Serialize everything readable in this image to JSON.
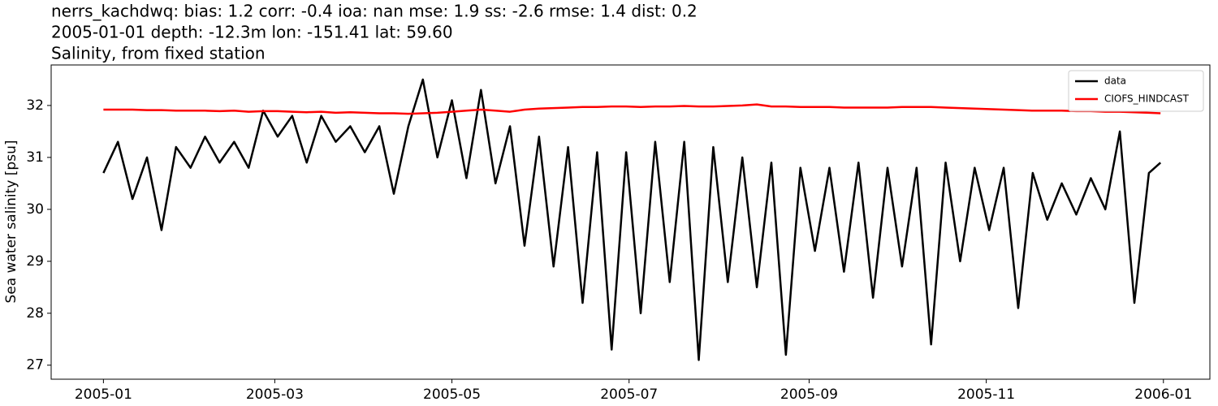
{
  "chart_data": {
    "type": "line",
    "title": "nerrs_kachdwq: bias: 1.2  corr: -0.4  ioa: nan  mse: 1.9  ss: -2.6  rmse: 1.4  dist: 0.2",
    "subtitle": "2005-01-01 depth: -12.3m lon: -151.41 lat: 59.60",
    "subtitle2": "Salinity, from fixed station",
    "y_label": "Sea water salinity [psu]",
    "x": [
      "2005-01-01",
      "2005-01-06",
      "2005-01-11",
      "2005-01-16",
      "2005-01-21",
      "2005-01-26",
      "2005-01-31",
      "2005-02-05",
      "2005-02-10",
      "2005-02-15",
      "2005-02-20",
      "2005-02-25",
      "2005-03-02",
      "2005-03-07",
      "2005-03-12",
      "2005-03-17",
      "2005-03-22",
      "2005-03-27",
      "2005-04-01",
      "2005-04-06",
      "2005-04-11",
      "2005-04-16",
      "2005-04-21",
      "2005-04-26",
      "2005-05-01",
      "2005-05-06",
      "2005-05-11",
      "2005-05-16",
      "2005-05-21",
      "2005-05-26",
      "2005-05-31",
      "2005-06-05",
      "2005-06-10",
      "2005-06-15",
      "2005-06-20",
      "2005-06-25",
      "2005-06-30",
      "2005-07-05",
      "2005-07-10",
      "2005-07-15",
      "2005-07-20",
      "2005-07-25",
      "2005-07-30",
      "2005-08-04",
      "2005-08-09",
      "2005-08-14",
      "2005-08-19",
      "2005-08-24",
      "2005-08-29",
      "2005-09-03",
      "2005-09-08",
      "2005-09-13",
      "2005-09-18",
      "2005-09-23",
      "2005-09-28",
      "2005-10-03",
      "2005-10-08",
      "2005-10-13",
      "2005-10-18",
      "2005-10-23",
      "2005-10-28",
      "2005-11-02",
      "2005-11-07",
      "2005-11-12",
      "2005-11-17",
      "2005-11-22",
      "2005-11-27",
      "2005-12-02",
      "2005-12-07",
      "2005-12-12",
      "2005-12-17",
      "2005-12-22",
      "2005-12-27",
      "2005-12-31"
    ],
    "series": [
      {
        "name": "data",
        "color": "#000000",
        "values": [
          30.7,
          31.3,
          30.2,
          31.0,
          29.6,
          31.2,
          30.8,
          31.4,
          30.9,
          31.3,
          30.8,
          31.9,
          31.4,
          31.8,
          30.9,
          31.8,
          31.3,
          31.6,
          31.1,
          31.6,
          30.3,
          31.6,
          32.5,
          31.0,
          32.1,
          30.6,
          32.3,
          30.5,
          31.6,
          29.3,
          31.4,
          28.9,
          31.2,
          28.2,
          31.1,
          27.3,
          31.1,
          28.0,
          31.3,
          28.6,
          31.3,
          27.1,
          31.2,
          28.6,
          31.0,
          28.5,
          30.9,
          27.2,
          30.8,
          29.2,
          30.8,
          28.8,
          30.9,
          28.3,
          30.8,
          28.9,
          30.8,
          27.4,
          30.9,
          29.0,
          30.8,
          29.6,
          30.8,
          28.1,
          30.7,
          29.8,
          30.5,
          29.9,
          30.6,
          30.0,
          31.5,
          28.2,
          30.7,
          30.9
        ]
      },
      {
        "name": "CIOFS_HINDCAST",
        "color": "#ff0000",
        "values": [
          31.92,
          31.92,
          31.92,
          31.91,
          31.91,
          31.9,
          31.9,
          31.9,
          31.89,
          31.9,
          31.88,
          31.89,
          31.89,
          31.88,
          31.87,
          31.88,
          31.86,
          31.87,
          31.86,
          31.85,
          31.85,
          31.84,
          31.85,
          31.86,
          31.88,
          31.9,
          31.92,
          31.9,
          31.88,
          31.92,
          31.94,
          31.95,
          31.96,
          31.97,
          31.97,
          31.98,
          31.98,
          31.97,
          31.98,
          31.98,
          31.99,
          31.98,
          31.98,
          31.99,
          32.0,
          32.02,
          31.98,
          31.98,
          31.97,
          31.97,
          31.97,
          31.96,
          31.96,
          31.96,
          31.96,
          31.97,
          31.97,
          31.97,
          31.96,
          31.95,
          31.94,
          31.93,
          31.92,
          31.91,
          31.9,
          31.9,
          31.9,
          31.89,
          31.89,
          31.88,
          31.88,
          31.87,
          31.86,
          31.85
        ]
      }
    ],
    "xlim": [
      "2004-12-14",
      "2006-01-17"
    ],
    "xticks": [
      {
        "value": "2005-01-01",
        "label": "2005-01"
      },
      {
        "value": "2005-03-01",
        "label": "2005-03"
      },
      {
        "value": "2005-05-01",
        "label": "2005-05"
      },
      {
        "value": "2005-07-01",
        "label": "2005-07"
      },
      {
        "value": "2005-09-01",
        "label": "2005-09"
      },
      {
        "value": "2005-11-01",
        "label": "2005-11"
      },
      {
        "value": "2006-01-01",
        "label": "2006-01"
      }
    ],
    "ylim": [
      26.73,
      32.78
    ],
    "yticks": [
      27,
      28,
      29,
      30,
      31,
      32
    ],
    "legend": "upper right"
  }
}
